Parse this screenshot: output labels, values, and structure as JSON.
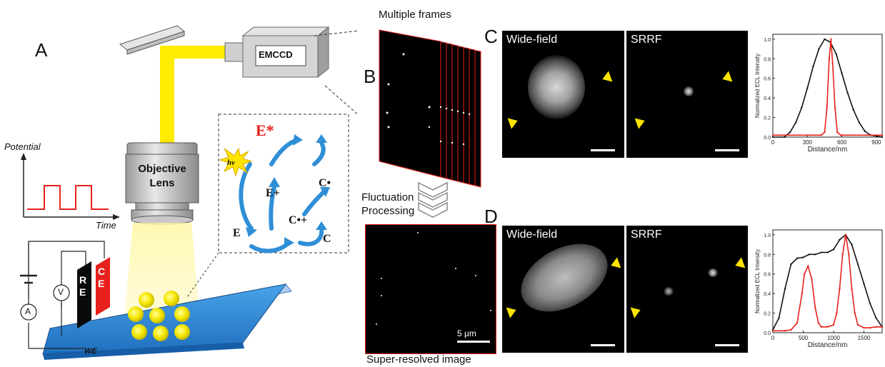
{
  "panel_a": {
    "letter": "A",
    "emccd_label": "EMCCD",
    "objective_label_line1": "Objective",
    "objective_label_line2": "Lens",
    "potential_label": "Potential",
    "time_label": "Time",
    "we_label": "WE",
    "re_label": "RE",
    "ce_label": "CE",
    "voltmeter_label": "V",
    "ammeter_label": "A",
    "scheme": {
      "hv": "hv",
      "E_star": "E*",
      "E_plus": "E+",
      "E": "E",
      "C_dot": "C•",
      "C_dotplus": "C•+",
      "C": "C"
    }
  },
  "panel_b": {
    "letter": "B",
    "multiple_frames_label": "Multiple frames",
    "fluctuation_label_line1": "Fluctuation",
    "fluctuation_label_line2": "Processing",
    "super_resolved_label": "Super-resolved image",
    "scale_label": "5 μm"
  },
  "panel_c": {
    "letter": "C",
    "widefield_label": "Wide-field",
    "srrf_label": "SRRF"
  },
  "panel_d": {
    "letter": "D",
    "widefield_label": "Wide-field",
    "srrf_label": "SRRF"
  },
  "chart_data": [
    {
      "type": "line",
      "panel": "C",
      "xlabel": "Distance/nm",
      "ylabel": "Normalized ECL Intensity",
      "xlim": [
        0,
        950
      ],
      "ylim": [
        0,
        1.05
      ],
      "xticks": [
        0,
        300,
        600,
        900
      ],
      "yticks": [
        0.0,
        0.2,
        0.4,
        0.6,
        0.8,
        1.0
      ],
      "series": [
        {
          "color": "#111111",
          "x": [
            0,
            100,
            150,
            200,
            250,
            300,
            350,
            400,
            450,
            500,
            550,
            600,
            650,
            700,
            750,
            800,
            850,
            900,
            950
          ],
          "y": [
            0.0,
            0.0,
            0.05,
            0.15,
            0.3,
            0.5,
            0.72,
            0.9,
            1.0,
            0.97,
            0.85,
            0.65,
            0.45,
            0.28,
            0.15,
            0.06,
            0.02,
            0.01,
            0.0
          ]
        },
        {
          "color": "#e8201b",
          "x": [
            0,
            420,
            450,
            470,
            490,
            505,
            520,
            540,
            560,
            590,
            950
          ],
          "y": [
            0.02,
            0.02,
            0.05,
            0.3,
            0.8,
            1.0,
            0.75,
            0.3,
            0.05,
            0.02,
            0.02
          ]
        }
      ]
    },
    {
      "type": "line",
      "panel": "D",
      "xlabel": "Distance/nm",
      "ylabel": "Normalized ECL Intensity",
      "xlim": [
        0,
        1800
      ],
      "ylim": [
        0,
        1.05
      ],
      "xticks": [
        0,
        500,
        1000,
        1500
      ],
      "yticks": [
        0.0,
        0.2,
        0.4,
        0.6,
        0.8,
        1.0
      ],
      "series": [
        {
          "color": "#111111",
          "x": [
            0,
            100,
            200,
            300,
            400,
            500,
            600,
            700,
            800,
            900,
            1000,
            1100,
            1200,
            1300,
            1400,
            1500,
            1600,
            1700,
            1800
          ],
          "y": [
            0.03,
            0.15,
            0.45,
            0.7,
            0.76,
            0.77,
            0.8,
            0.8,
            0.82,
            0.82,
            0.85,
            0.95,
            1.0,
            0.9,
            0.7,
            0.5,
            0.3,
            0.15,
            0.06
          ]
        },
        {
          "color": "#e8201b",
          "x": [
            0,
            200,
            300,
            400,
            480,
            520,
            580,
            640,
            700,
            750,
            800,
            900,
            1000,
            1050,
            1100,
            1150,
            1200,
            1250,
            1300,
            1350,
            1400,
            1500,
            1600,
            1700,
            1800
          ],
          "y": [
            0.02,
            0.02,
            0.03,
            0.1,
            0.4,
            0.6,
            0.68,
            0.55,
            0.25,
            0.1,
            0.06,
            0.06,
            0.08,
            0.2,
            0.45,
            0.8,
            1.0,
            0.8,
            0.45,
            0.2,
            0.08,
            0.05,
            0.05,
            0.06,
            0.06
          ]
        }
      ]
    }
  ]
}
